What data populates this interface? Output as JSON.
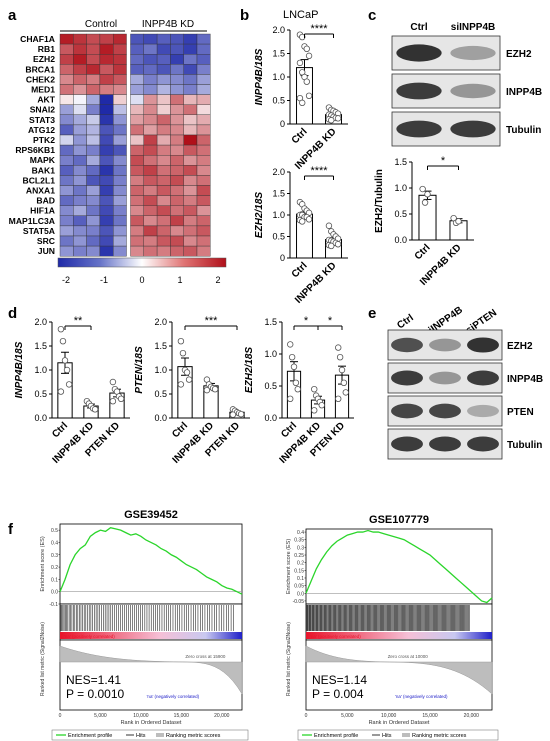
{
  "panels": {
    "a": {
      "letter": "a",
      "group_labels": [
        "Control",
        "INPP4B KD"
      ],
      "genes": [
        "CHAF1A",
        "RB1",
        "EZH2",
        "BRCA1",
        "CHEK2",
        "MED1",
        "AKT",
        "SNAI2",
        "STAT3",
        "ATG12",
        "PTK2",
        "RPS6KB1",
        "MAPK",
        "BAK1",
        "BCL2L1",
        "ANXA1",
        "BAD",
        "HIF1A",
        "MAP1LC3A",
        "STAT5A",
        "SRC",
        "JUN"
      ],
      "colorbar_ticks": [
        "-2",
        "-1",
        "0",
        "1",
        "2"
      ],
      "heatmap": [
        [
          1.9,
          1.7,
          1.5,
          1.6,
          1.8,
          -1.6,
          -1.7,
          -1.5,
          -1.6,
          -1.8,
          -1.4
        ],
        [
          1.4,
          1.7,
          1.5,
          1.9,
          1.6,
          -1.5,
          -1.3,
          -1.7,
          -1.6,
          -1.8,
          -1.4
        ],
        [
          1.6,
          1.9,
          1.5,
          1.8,
          1.7,
          -1.4,
          -1.6,
          -1.5,
          -1.8,
          -1.3,
          -1.5
        ],
        [
          1.3,
          1.6,
          1.8,
          1.4,
          1.7,
          -1.5,
          -1.4,
          -1.6,
          -1.3,
          -1.7,
          -1.2
        ],
        [
          1.0,
          1.3,
          1.1,
          1.6,
          1.4,
          -0.8,
          -1.2,
          -1.0,
          -1.1,
          -1.3,
          -0.9
        ],
        [
          1.2,
          0.9,
          1.3,
          1.1,
          1.0,
          -0.9,
          -1.1,
          -0.7,
          -1.0,
          -1.2,
          -0.8
        ],
        [
          0.2,
          -0.1,
          -0.8,
          -2.0,
          0.4,
          -0.3,
          0.9,
          0.5,
          1.2,
          0.6,
          0.7
        ],
        [
          -0.9,
          -0.3,
          -1.2,
          -2.0,
          -0.6,
          0.6,
          1.0,
          0.4,
          0.9,
          1.2,
          0.3
        ],
        [
          -1.1,
          -0.8,
          -0.5,
          -1.9,
          -1.0,
          0.8,
          1.0,
          1.3,
          0.9,
          0.5,
          0.7
        ],
        [
          -1.5,
          -0.9,
          -0.7,
          -1.6,
          -1.3,
          1.2,
          0.8,
          1.1,
          1.0,
          0.6,
          0.9
        ],
        [
          -0.4,
          -1.0,
          -0.6,
          -1.7,
          -0.9,
          0.5,
          1.6,
          0.7,
          1.1,
          2.0,
          1.3
        ],
        [
          -1.4,
          -1.0,
          -1.2,
          -1.8,
          -1.6,
          1.3,
          1.5,
          1.1,
          1.0,
          1.4,
          1.2
        ],
        [
          -1.2,
          -1.4,
          -0.8,
          -1.6,
          -1.1,
          1.5,
          1.2,
          1.0,
          1.3,
          0.9,
          1.1
        ],
        [
          -1.5,
          -1.1,
          -1.4,
          -1.9,
          -1.3,
          1.4,
          1.6,
          1.2,
          1.3,
          1.5,
          1.0
        ],
        [
          -1.3,
          -1.0,
          -1.6,
          -1.7,
          -1.2,
          1.1,
          1.4,
          1.3,
          1.5,
          1.0,
          1.2
        ],
        [
          -1.0,
          -1.3,
          -0.9,
          -1.8,
          -1.1,
          1.3,
          1.1,
          1.4,
          1.2,
          0.9,
          1.5
        ],
        [
          -1.4,
          -1.2,
          -1.1,
          -1.6,
          -0.9,
          1.2,
          1.5,
          1.0,
          1.3,
          1.1,
          1.4
        ],
        [
          -1.1,
          -0.8,
          -1.3,
          -1.7,
          -1.2,
          1.0,
          1.3,
          1.5,
          1.2,
          1.4,
          0.9
        ],
        [
          -1.2,
          -1.5,
          -1.0,
          -1.8,
          -1.3,
          1.4,
          1.0,
          1.2,
          1.6,
          1.1,
          1.3
        ],
        [
          -0.9,
          -1.1,
          -1.2,
          -1.6,
          -1.0,
          1.1,
          1.6,
          1.3,
          1.0,
          1.2,
          1.4
        ],
        [
          -1.3,
          -1.0,
          -1.4,
          -1.7,
          -0.8,
          1.2,
          1.1,
          1.4,
          1.5,
          1.0,
          1.2
        ],
        [
          -1.0,
          -1.2,
          -1.1,
          -1.9,
          -1.1,
          1.0,
          1.2,
          1.1,
          1.3,
          1.4,
          1.1
        ]
      ]
    },
    "b": {
      "letter": "b",
      "title": "LNCaP",
      "categories": [
        "Ctrl",
        "INPP4B KD"
      ],
      "charts": [
        {
          "ylabel": "INPP4B/18S",
          "ylim": [
            0,
            2.0
          ],
          "yticks": [
            "0",
            "0.5",
            "1.0",
            "1.5",
            "2.0"
          ],
          "means": [
            1.2,
            0.2
          ],
          "sem": [
            0.17,
            0.03
          ],
          "sig": "****",
          "points": [
            [
              1.9,
              1.85,
              1.65,
              1.6,
              1.45,
              1.3,
              1.1,
              1.0,
              0.9,
              0.6,
              0.55,
              0.45
            ],
            [
              0.35,
              0.3,
              0.28,
              0.25,
              0.22,
              0.2,
              0.18,
              0.15,
              0.13,
              0.12,
              0.1,
              0.08
            ]
          ]
        },
        {
          "ylabel": "EZH2/18S",
          "ylim": [
            0,
            2.0
          ],
          "yticks": [
            "0",
            "0.5",
            "1.0",
            "1.5",
            "2.0"
          ],
          "means": [
            1.02,
            0.43
          ],
          "sem": [
            0.05,
            0.04
          ],
          "sig": "****",
          "points": [
            [
              1.3,
              1.25,
              1.15,
              1.1,
              1.05,
              1.0,
              1.0,
              0.95,
              0.95,
              0.9,
              0.88,
              0.85
            ],
            [
              0.75,
              0.62,
              0.55,
              0.5,
              0.45,
              0.42,
              0.4,
              0.38,
              0.35,
              0.32,
              0.3,
              0.28
            ]
          ]
        }
      ]
    },
    "c": {
      "letter": "c",
      "lanes": [
        "Ctrl",
        "siINPP4B"
      ],
      "bands": [
        "EZH2",
        "INPP4B",
        "Tubulin"
      ],
      "band_intensity": [
        [
          0.9,
          0.35
        ],
        [
          0.85,
          0.4
        ],
        [
          0.85,
          0.85
        ]
      ],
      "chart": {
        "ylabel": "EZH2/Tubulin",
        "ylim": [
          0,
          1.5
        ],
        "yticks": [
          "0.0",
          "0.5",
          "1.0",
          "1.5"
        ],
        "categories": [
          "Ctrl",
          "INPP4B KD"
        ],
        "means": [
          0.86,
          0.37
        ],
        "sem": [
          0.08,
          0.04
        ],
        "sig": "*",
        "points": [
          [
            0.98,
            0.72,
            0.88
          ],
          [
            0.42,
            0.33,
            0.36
          ]
        ]
      }
    },
    "d": {
      "letter": "d",
      "categories": [
        "Ctrl",
        "INPP4B KD",
        "PTEN KD"
      ],
      "charts": [
        {
          "ylabel": "INPP4B/18S",
          "ylim": [
            0,
            2.0
          ],
          "yticks": [
            "0.0",
            "0.5",
            "1.0",
            "1.5",
            "2.0"
          ],
          "means": [
            1.15,
            0.25,
            0.52
          ],
          "sem": [
            0.22,
            0.04,
            0.08
          ],
          "sig": [
            {
              "from": 0,
              "to": 1,
              "label": "**"
            }
          ],
          "points": [
            [
              1.85,
              1.6,
              1.2,
              1.0,
              0.7,
              0.55
            ],
            [
              0.35,
              0.3,
              0.25,
              0.2,
              0.18
            ],
            [
              0.75,
              0.6,
              0.55,
              0.45,
              0.4,
              0.35
            ]
          ]
        },
        {
          "ylabel": "PTEN/18S",
          "ylim": [
            0,
            2.0
          ],
          "yticks": [
            "0.0",
            "0.5",
            "1.0",
            "1.5",
            "2.0"
          ],
          "means": [
            1.07,
            0.67,
            0.12
          ],
          "sem": [
            0.18,
            0.05,
            0.02
          ],
          "sig": [
            {
              "from": 0,
              "to": 2,
              "label": "***"
            }
          ],
          "points": [
            [
              1.6,
              1.35,
              1.0,
              0.95,
              0.8,
              0.7
            ],
            [
              0.8,
              0.7,
              0.65,
              0.62,
              0.6,
              0.58
            ],
            [
              0.18,
              0.15,
              0.12,
              0.1,
              0.08,
              0.07
            ]
          ]
        },
        {
          "ylabel": "EZH2/18S",
          "ylim": [
            0,
            1.5
          ],
          "yticks": [
            "0.0",
            "0.5",
            "1.0",
            "1.5"
          ],
          "means": [
            0.73,
            0.28,
            0.67
          ],
          "sem": [
            0.15,
            0.06,
            0.14
          ],
          "sig": [
            {
              "from": 0,
              "to": 1,
              "label": "*"
            },
            {
              "from": 1,
              "to": 2,
              "label": "*"
            }
          ],
          "points": [
            [
              1.15,
              0.95,
              0.8,
              0.55,
              0.45,
              0.3
            ],
            [
              0.45,
              0.35,
              0.3,
              0.25,
              0.2,
              0.12
            ],
            [
              1.1,
              0.95,
              0.75,
              0.55,
              0.4,
              0.3
            ]
          ]
        }
      ]
    },
    "e": {
      "letter": "e",
      "lanes": [
        "Ctrl",
        "siINPP4B",
        "siPTEN"
      ],
      "bands": [
        "EZH2",
        "INPP4B",
        "PTEN",
        "Tubulin"
      ],
      "band_intensity": [
        [
          0.75,
          0.4,
          0.9
        ],
        [
          0.85,
          0.4,
          0.85
        ],
        [
          0.8,
          0.8,
          0.3
        ],
        [
          0.85,
          0.85,
          0.85
        ]
      ]
    },
    "f": {
      "letter": "f",
      "plots": [
        {
          "title": "GSE39452",
          "es_ylabel": "Enrichment score (ES)",
          "rank_ylabel": "Ranked list metric (Signal2Noise)",
          "xlabel": "Rank in Ordered Dataset",
          "es_ticks": [
            "0.5",
            "0.4",
            "0.3",
            "0.2",
            "0.1",
            "0.0",
            "-0.1"
          ],
          "es_range": [
            -0.1,
            0.55
          ],
          "x_ticks": [
            "0",
            "5,000",
            "10,000",
            "15,000",
            "20,000"
          ],
          "x_max": 22500,
          "pos_label": "'na' (positively correlated)",
          "neg_label": "'na' (negatively correlated)",
          "zero_cross": "Zero cross at 15900",
          "nes": "NES=1.41",
          "pval": "P = 0.0010",
          "es_curve": [
            0,
            0.1,
            0.22,
            0.3,
            0.35,
            0.38,
            0.45,
            0.48,
            0.5,
            0.49,
            0.52,
            0.51,
            0.5,
            0.48,
            0.46,
            0.47,
            0.45,
            0.42,
            0.4,
            0.38,
            0.35,
            0.33,
            0.3,
            0.28,
            0.25,
            0.22,
            0.2,
            0.18,
            0.15,
            0.12,
            0.1,
            0.08,
            0.05,
            0.03,
            0.02,
            0.0,
            -0.02
          ],
          "legend": [
            "Enrichment profile",
            "Hits",
            "Ranking metric scores"
          ]
        },
        {
          "title": "GSE107779",
          "es_ylabel": "Enrichment score (ES)",
          "rank_ylabel": "Ranked list metric (Signal2Noise)",
          "xlabel": "Rank in Ordered Dataset",
          "es_ticks": [
            "0.4",
            "0.35",
            "0.3",
            "0.25",
            "0.2",
            "0.15",
            "0.1",
            "0.05",
            "0.0",
            "-0.05"
          ],
          "es_range": [
            -0.07,
            0.42
          ],
          "x_ticks": [
            "0",
            "5,000",
            "10,000",
            "15,000",
            "20,000"
          ],
          "x_max": 22500,
          "pos_label": "'na' (positively correlated)",
          "neg_label": "'na' (negatively correlated)",
          "zero_cross": "Zero cross at 10000",
          "nes": "NES=1.14",
          "pval": "P = 0.004",
          "es_curve": [
            0,
            0.08,
            0.16,
            0.22,
            0.27,
            0.31,
            0.34,
            0.36,
            0.38,
            0.39,
            0.4,
            0.4,
            0.41,
            0.4,
            0.4,
            0.39,
            0.38,
            0.37,
            0.36,
            0.35,
            0.33,
            0.31,
            0.29,
            0.27,
            0.25,
            0.22,
            0.19,
            0.16,
            0.13,
            0.1,
            0.07,
            0.04,
            0.01,
            -0.02,
            -0.05,
            -0.06,
            -0.03
          ],
          "legend": [
            "Enrichment profile",
            "Hits",
            "Ranking metric scores"
          ]
        }
      ]
    }
  }
}
